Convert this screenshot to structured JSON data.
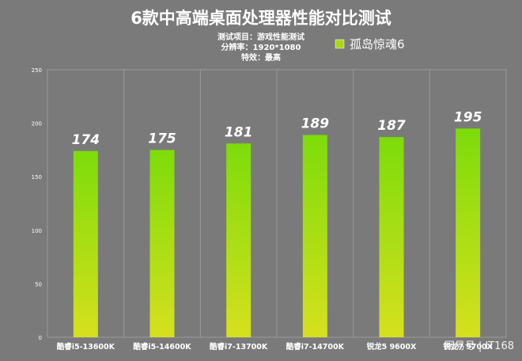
{
  "chart_data": {
    "type": "bar",
    "title": "6款中高端桌面处理器性能对比测试",
    "subtitle_lines": [
      "测试项目：游戏性能测试",
      "分辨率：1920*1080",
      "特效：最高"
    ],
    "categories": [
      "酷睿i5-13600K",
      "酷睿i5-14600K",
      "酷睿i7-13700K",
      "酷睿i7-14700K",
      "锐龙5 9600X",
      "锐龙7 9700X"
    ],
    "series": [
      {
        "name": "孤岛惊魂6",
        "values": [
          174,
          175,
          181,
          189,
          187,
          195
        ]
      }
    ],
    "ylim": [
      0,
      250
    ],
    "yticks": [
      0,
      50,
      100,
      150,
      200,
      250
    ],
    "grid": true,
    "legend_position": "top-right",
    "colors": {
      "bar_top": "#7ddc0a",
      "bar_bottom": "#d6e01e",
      "legend": "#a8d81a",
      "background": "#7a7a7a",
      "grid": "#9a9a9a"
    }
  },
  "watermark": "网易号 | IT168"
}
